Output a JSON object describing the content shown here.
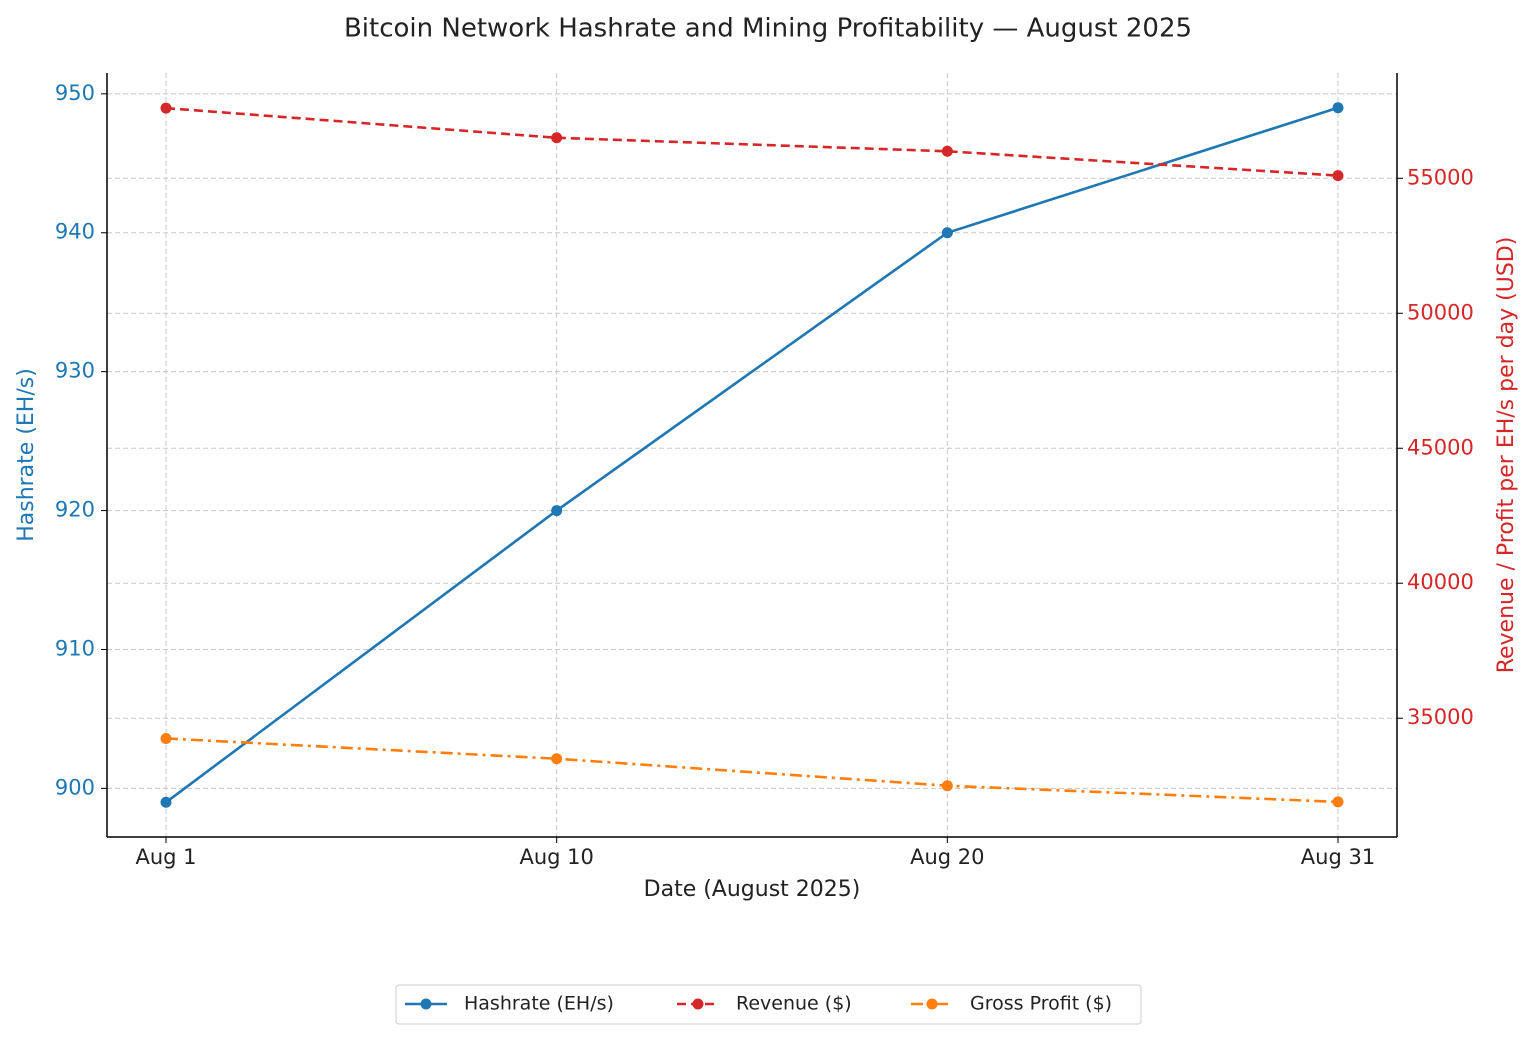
{
  "chart_data": {
    "type": "line",
    "title": "Bitcoin Network Hashrate and Mining Profitability — August 2025",
    "xlabel": "Date (August 2025)",
    "ylabel": "Hashrate (EH/s)",
    "y2label": "Revenue / Profit per EH/s per day (USD)",
    "categories": [
      "Aug 1",
      "Aug 10",
      "Aug 20",
      "Aug 31"
    ],
    "series": [
      {
        "name": "Hashrate (EH/s)",
        "color": "#1f77b4",
        "linestyle": "solid",
        "values": [
          899,
          920,
          940,
          949
        ]
      },
      {
        "name": "Revenue ($)",
        "color": "#d62728",
        "linestyle": "dashed",
        "axis": "y2",
        "values": [
          57600,
          56500,
          56000,
          55100
        ]
      },
      {
        "name": "Gross Profit ($)",
        "color": "#ff7f0e",
        "linestyle": "dashdot",
        "axis": "y2",
        "values": [
          34250,
          33500,
          32500,
          31900
        ]
      }
    ],
    "ylim": [
      896.5,
      951.5
    ],
    "yticks": [
      900,
      910,
      920,
      930,
      940,
      950
    ],
    "y2lim": [
      30600,
      58900
    ],
    "y2ticks": [
      35000,
      40000,
      45000,
      50000,
      55000
    ],
    "ylabel_color": "#1f77b4",
    "y2label_color": "#d62728",
    "grid": true,
    "legend": "bottom"
  }
}
